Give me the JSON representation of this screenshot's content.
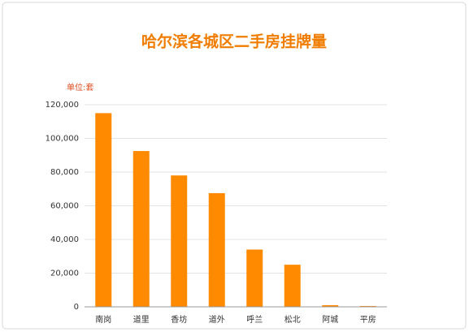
{
  "chart_data": {
    "type": "bar",
    "title": "哈尔滨各城区二手房挂牌量",
    "y_unit_label": "单位:套",
    "categories": [
      "南岗",
      "道里",
      "香坊",
      "道外",
      "呼兰",
      "松北",
      "阿城",
      "平房"
    ],
    "values": [
      115000,
      92500,
      78000,
      67500,
      34000,
      25000,
      1000,
      500
    ],
    "color": "#ff8a00",
    "ylim": [
      0,
      120000
    ],
    "yticks": [
      0,
      {
        "value": 20000,
        "label": "20,000"
      },
      {
        "value": 40000,
        "label": "40,000"
      },
      {
        "value": 60000,
        "label": "60,000"
      },
      {
        "value": 80000,
        "label": "80,000"
      },
      {
        "value": 100000,
        "label": "100,000"
      },
      {
        "value": 120000,
        "label": "120,000"
      }
    ],
    "grid": true
  }
}
